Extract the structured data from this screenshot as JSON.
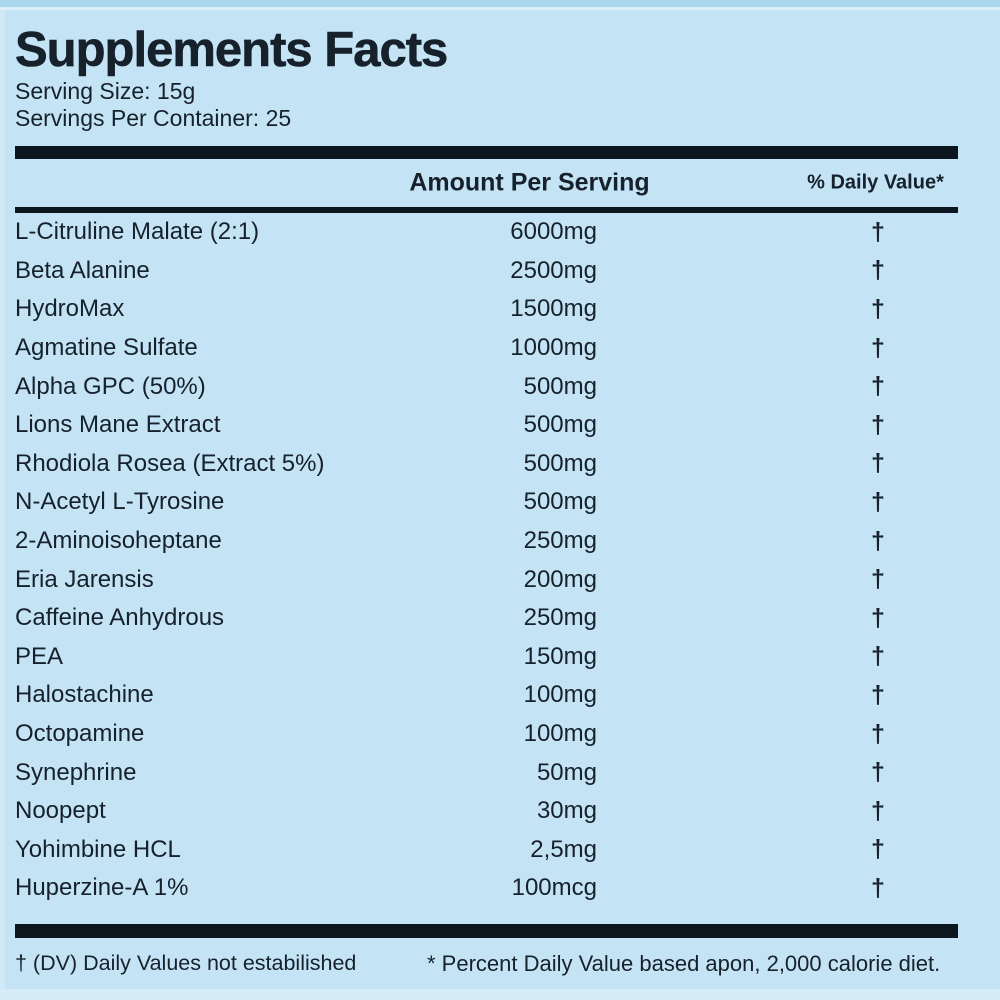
{
  "label": {
    "title": "Supplements Facts",
    "serving_size": "Serving Size: 15g",
    "servings_per_container": "Servings Per Container: 25",
    "header": {
      "amount": "Amount Per Serving",
      "daily_value": "% Daily Value*"
    },
    "dagger": "†",
    "rows": [
      {
        "name": "L-Citruline Malate (2:1)",
        "amount": "6000mg",
        "dv": "†"
      },
      {
        "name": "Beta Alanine",
        "amount": "2500mg",
        "dv": "†"
      },
      {
        "name": "HydroMax",
        "amount": "1500mg",
        "dv": "†"
      },
      {
        "name": "Agmatine Sulfate",
        "amount": "1000mg",
        "dv": "†"
      },
      {
        "name": "Alpha GPC (50%)",
        "amount": "500mg",
        "dv": "†"
      },
      {
        "name": "Lions Mane Extract",
        "amount": "500mg",
        "dv": "†"
      },
      {
        "name": "Rhodiola Rosea (Extract 5%)",
        "amount": "500mg",
        "dv": "†"
      },
      {
        "name": "N-Acetyl L-Tyrosine",
        "amount": "500mg",
        "dv": "†"
      },
      {
        "name": "2-Aminoisoheptane",
        "amount": "250mg",
        "dv": "†"
      },
      {
        "name": "Eria Jarensis",
        "amount": "200mg",
        "dv": "†"
      },
      {
        "name": "Caffeine Anhydrous",
        "amount": "250mg",
        "dv": "†"
      },
      {
        "name": "PEA",
        "amount": "150mg",
        "dv": "†"
      },
      {
        "name": "Halostachine",
        "amount": "100mg",
        "dv": "†"
      },
      {
        "name": "Octopamine",
        "amount": "100mg",
        "dv": "†"
      },
      {
        "name": "Synephrine",
        "amount": "50mg",
        "dv": "†"
      },
      {
        "name": "Noopept",
        "amount": "30mg",
        "dv": "†"
      },
      {
        "name": "Yohimbine HCL",
        "amount": "2,5mg",
        "dv": "†"
      },
      {
        "name": "Huperzine-A 1%",
        "amount": "100mcg",
        "dv": "†"
      }
    ],
    "footnotes": {
      "left": "† (DV) Daily Values not estabilished",
      "right": "* Percent Daily Value based apon, 2,000 calorie diet."
    },
    "colors": {
      "background": "#c4e4f6",
      "text": "#16212c",
      "bar": "#0c161f",
      "top_strip": "#a9d8ec",
      "bottom_strip": "#d6edf8"
    }
  }
}
